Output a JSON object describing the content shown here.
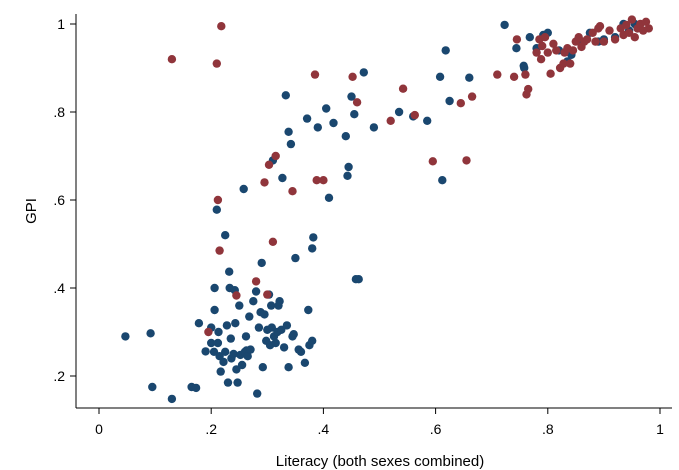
{
  "chart_data": {
    "type": "scatter",
    "title": "",
    "xlabel": "Literacy (both sexes combined)",
    "ylabel": "GPI",
    "xlim": [
      0,
      1
    ],
    "ylim": [
      0.14,
      1.02
    ],
    "xticks": [
      0,
      0.2,
      0.4,
      0.6,
      0.8,
      1
    ],
    "xtick_labels": [
      "0",
      ".2",
      ".4",
      ".6",
      ".8",
      "1"
    ],
    "yticks": [
      0.2,
      0.4,
      0.6,
      0.8,
      1
    ],
    "ytick_labels": [
      ".2",
      ".4",
      ".6",
      ".8",
      "1"
    ],
    "grid": false,
    "legend": "none",
    "series": [
      {
        "color": "#1a476f",
        "points": [
          [
            0.047,
            0.29
          ],
          [
            0.092,
            0.297
          ],
          [
            0.095,
            0.175
          ],
          [
            0.13,
            0.148
          ],
          [
            0.165,
            0.175
          ],
          [
            0.173,
            0.173
          ],
          [
            0.178,
            0.32
          ],
          [
            0.19,
            0.256
          ],
          [
            0.2,
            0.31
          ],
          [
            0.2,
            0.275
          ],
          [
            0.205,
            0.255
          ],
          [
            0.206,
            0.4
          ],
          [
            0.206,
            0.35
          ],
          [
            0.21,
            0.578
          ],
          [
            0.212,
            0.275
          ],
          [
            0.213,
            0.3
          ],
          [
            0.215,
            0.245
          ],
          [
            0.217,
            0.21
          ],
          [
            0.222,
            0.232
          ],
          [
            0.225,
            0.52
          ],
          [
            0.225,
            0.255
          ],
          [
            0.228,
            0.315
          ],
          [
            0.23,
            0.185
          ],
          [
            0.232,
            0.437
          ],
          [
            0.233,
            0.4
          ],
          [
            0.235,
            0.285
          ],
          [
            0.236,
            0.24
          ],
          [
            0.24,
            0.25
          ],
          [
            0.242,
            0.395
          ],
          [
            0.243,
            0.32
          ],
          [
            0.245,
            0.215
          ],
          [
            0.247,
            0.185
          ],
          [
            0.25,
            0.36
          ],
          [
            0.252,
            0.248
          ],
          [
            0.255,
            0.225
          ],
          [
            0.258,
            0.625
          ],
          [
            0.26,
            0.255
          ],
          [
            0.262,
            0.29
          ],
          [
            0.263,
            0.258
          ],
          [
            0.265,
            0.245
          ],
          [
            0.268,
            0.335
          ],
          [
            0.27,
            0.26
          ],
          [
            0.275,
            0.37
          ],
          [
            0.28,
            0.392
          ],
          [
            0.282,
            0.16
          ],
          [
            0.285,
            0.31
          ],
          [
            0.288,
            0.345
          ],
          [
            0.29,
            0.457
          ],
          [
            0.292,
            0.22
          ],
          [
            0.295,
            0.34
          ],
          [
            0.298,
            0.28
          ],
          [
            0.3,
            0.305
          ],
          [
            0.303,
            0.385
          ],
          [
            0.305,
            0.27
          ],
          [
            0.307,
            0.36
          ],
          [
            0.308,
            0.31
          ],
          [
            0.31,
            0.69
          ],
          [
            0.312,
            0.29
          ],
          [
            0.315,
            0.275
          ],
          [
            0.318,
            0.3
          ],
          [
            0.32,
            0.36
          ],
          [
            0.322,
            0.37
          ],
          [
            0.325,
            0.305
          ],
          [
            0.327,
            0.65
          ],
          [
            0.33,
            0.265
          ],
          [
            0.333,
            0.838
          ],
          [
            0.335,
            0.315
          ],
          [
            0.338,
            0.755
          ],
          [
            0.338,
            0.22
          ],
          [
            0.342,
            0.727
          ],
          [
            0.345,
            0.29
          ],
          [
            0.347,
            0.295
          ],
          [
            0.35,
            0.468
          ],
          [
            0.356,
            0.26
          ],
          [
            0.36,
            0.255
          ],
          [
            0.367,
            0.23
          ],
          [
            0.371,
            0.785
          ],
          [
            0.373,
            0.35
          ],
          [
            0.375,
            0.27
          ],
          [
            0.38,
            0.28
          ],
          [
            0.38,
            0.49
          ],
          [
            0.382,
            0.515
          ],
          [
            0.39,
            0.765
          ],
          [
            0.405,
            0.808
          ],
          [
            0.41,
            0.605
          ],
          [
            0.418,
            0.775
          ],
          [
            0.44,
            0.745
          ],
          [
            0.443,
            0.655
          ],
          [
            0.445,
            0.675
          ],
          [
            0.45,
            0.835
          ],
          [
            0.455,
            0.795
          ],
          [
            0.458,
            0.42
          ],
          [
            0.463,
            0.42
          ],
          [
            0.472,
            0.89
          ],
          [
            0.49,
            0.765
          ],
          [
            0.535,
            0.8
          ],
          [
            0.56,
            0.79
          ],
          [
            0.585,
            0.78
          ],
          [
            0.608,
            0.88
          ],
          [
            0.612,
            0.645
          ],
          [
            0.618,
            0.94
          ],
          [
            0.625,
            0.825
          ],
          [
            0.66,
            0.878
          ],
          [
            0.723,
            0.998
          ],
          [
            0.744,
            0.945
          ],
          [
            0.757,
            0.905
          ],
          [
            0.758,
            0.9
          ],
          [
            0.768,
            0.97
          ],
          [
            0.78,
            0.945
          ],
          [
            0.792,
            0.975
          ],
          [
            0.8,
            0.98
          ],
          [
            0.82,
            0.94
          ],
          [
            0.835,
            0.915
          ],
          [
            0.842,
            0.93
          ],
          [
            0.86,
            0.955
          ],
          [
            0.875,
            0.98
          ],
          [
            0.89,
            0.96
          ],
          [
            0.9,
            0.965
          ],
          [
            0.92,
            0.97
          ],
          [
            0.935,
            1.0
          ],
          [
            0.945,
            0.985
          ],
          [
            0.955,
            1.0
          ],
          [
            0.96,
            0.99
          ]
        ]
      },
      {
        "color": "#90353b",
        "points": [
          [
            0.13,
            0.92
          ],
          [
            0.195,
            0.3
          ],
          [
            0.21,
            0.91
          ],
          [
            0.212,
            0.6
          ],
          [
            0.215,
            0.485
          ],
          [
            0.218,
            0.995
          ],
          [
            0.245,
            0.383
          ],
          [
            0.28,
            0.415
          ],
          [
            0.295,
            0.64
          ],
          [
            0.3,
            0.385
          ],
          [
            0.303,
            0.68
          ],
          [
            0.31,
            0.505
          ],
          [
            0.315,
            0.7
          ],
          [
            0.345,
            0.62
          ],
          [
            0.385,
            0.885
          ],
          [
            0.388,
            0.645
          ],
          [
            0.4,
            0.645
          ],
          [
            0.452,
            0.88
          ],
          [
            0.46,
            0.822
          ],
          [
            0.52,
            0.78
          ],
          [
            0.542,
            0.853
          ],
          [
            0.563,
            0.793
          ],
          [
            0.595,
            0.688
          ],
          [
            0.645,
            0.82
          ],
          [
            0.655,
            0.69
          ],
          [
            0.665,
            0.835
          ],
          [
            0.71,
            0.885
          ],
          [
            0.74,
            0.88
          ],
          [
            0.745,
            0.965
          ],
          [
            0.76,
            0.885
          ],
          [
            0.762,
            0.84
          ],
          [
            0.765,
            0.852
          ],
          [
            0.78,
            0.935
          ],
          [
            0.785,
            0.965
          ],
          [
            0.788,
            0.92
          ],
          [
            0.79,
            0.95
          ],
          [
            0.795,
            0.97
          ],
          [
            0.8,
            0.935
          ],
          [
            0.805,
            0.887
          ],
          [
            0.81,
            0.955
          ],
          [
            0.815,
            0.94
          ],
          [
            0.822,
            0.9
          ],
          [
            0.828,
            0.91
          ],
          [
            0.83,
            0.935
          ],
          [
            0.835,
            0.945
          ],
          [
            0.84,
            0.91
          ],
          [
            0.845,
            0.94
          ],
          [
            0.85,
            0.96
          ],
          [
            0.855,
            0.97
          ],
          [
            0.86,
            0.948
          ],
          [
            0.865,
            0.96
          ],
          [
            0.87,
            0.965
          ],
          [
            0.88,
            0.98
          ],
          [
            0.885,
            0.96
          ],
          [
            0.89,
            0.99
          ],
          [
            0.893,
            0.995
          ],
          [
            0.9,
            0.96
          ],
          [
            0.91,
            0.985
          ],
          [
            0.92,
            0.965
          ],
          [
            0.93,
            0.99
          ],
          [
            0.935,
            0.975
          ],
          [
            0.94,
            0.998
          ],
          [
            0.945,
            0.98
          ],
          [
            0.95,
            1.01
          ],
          [
            0.955,
            0.97
          ],
          [
            0.96,
            0.99
          ],
          [
            0.965,
            1.0
          ],
          [
            0.97,
            0.985
          ],
          [
            0.975,
            1.005
          ],
          [
            0.98,
            0.99
          ]
        ]
      }
    ]
  }
}
